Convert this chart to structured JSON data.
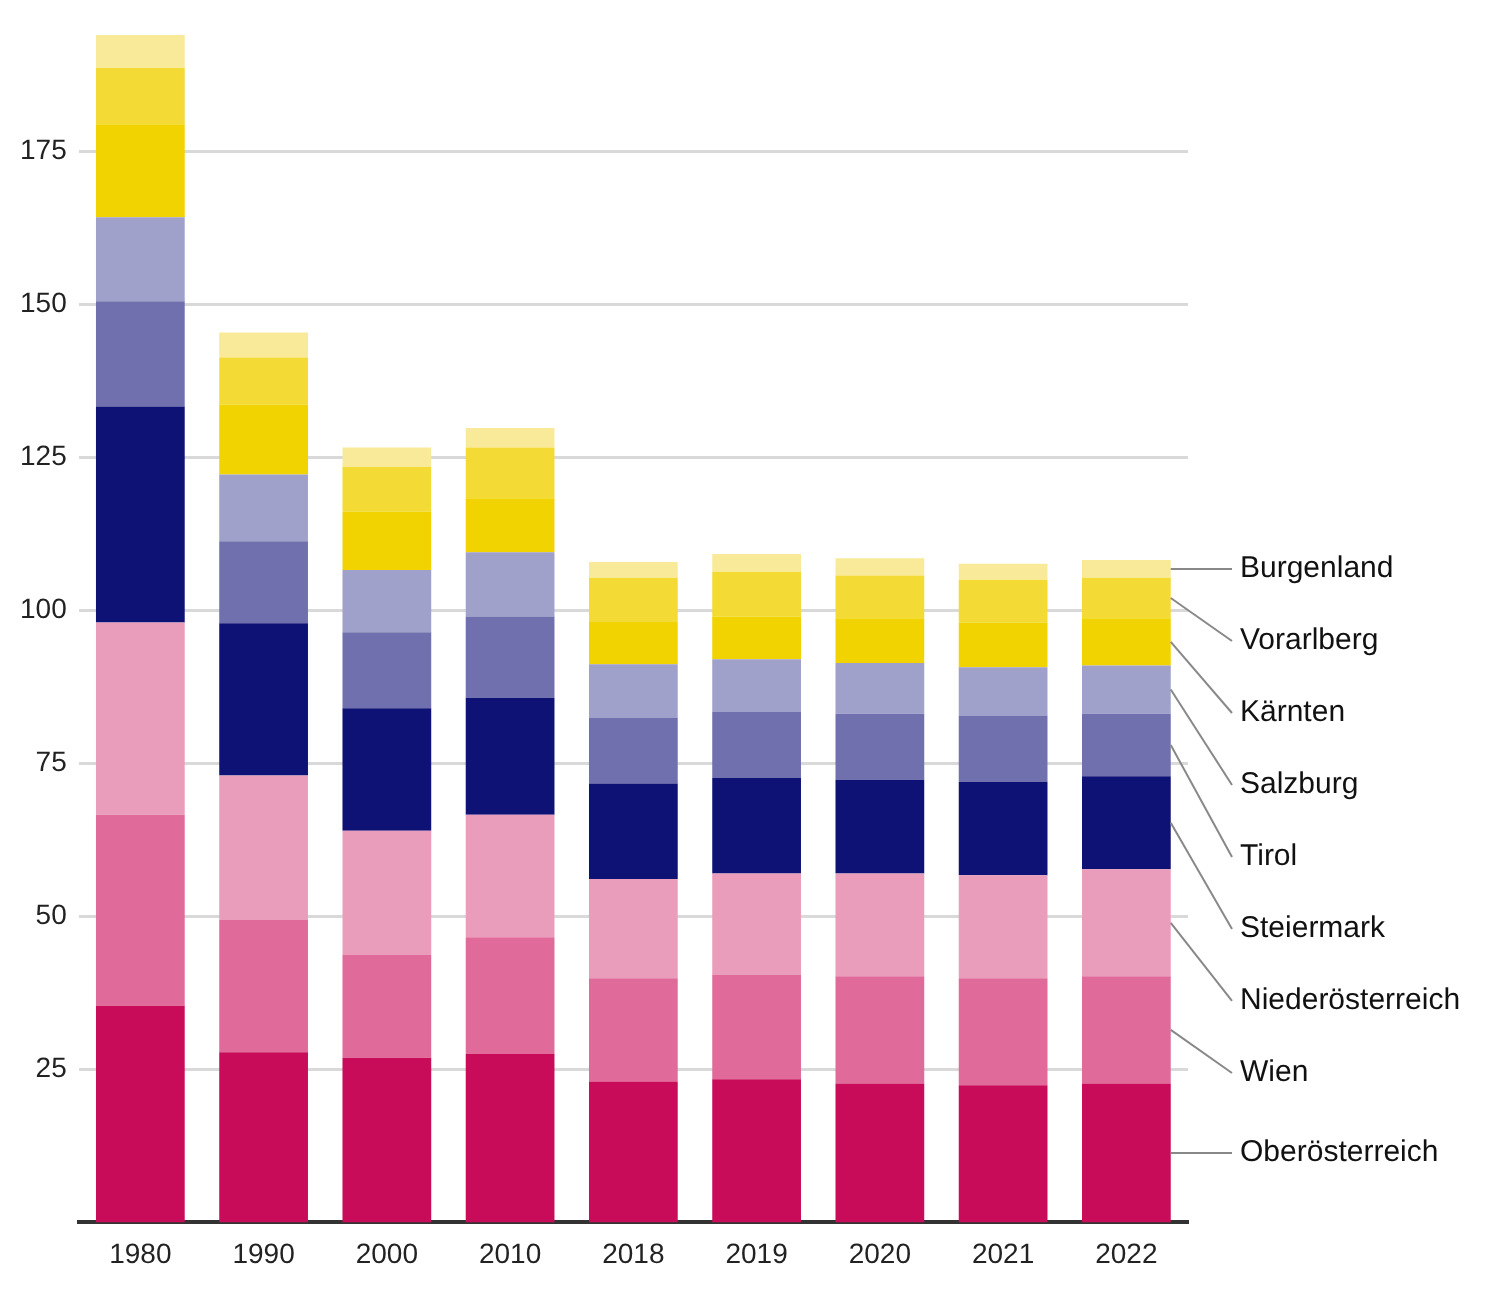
{
  "chart_data": {
    "type": "bar",
    "stacked": true,
    "categories": [
      "1980",
      "1990",
      "2000",
      "2010",
      "2018",
      "2019",
      "2020",
      "2021",
      "2022"
    ],
    "series": [
      {
        "name": "Oberösterreich",
        "color": "#c90c59",
        "values": [
          35.4,
          27.8,
          26.9,
          27.5,
          23.0,
          23.4,
          22.7,
          22.4,
          22.7
        ]
      },
      {
        "name": "Wien",
        "color": "#e06b9a",
        "values": [
          31.2,
          21.6,
          16.8,
          19.1,
          16.9,
          17.1,
          17.5,
          17.5,
          17.5
        ]
      },
      {
        "name": "Niederösterreich",
        "color": "#ea9dbb",
        "values": [
          31.4,
          23.6,
          20.3,
          20.0,
          16.2,
          16.5,
          16.8,
          16.8,
          17.5
        ]
      },
      {
        "name": "Steiermark",
        "color": "#0f1275",
        "values": [
          35.3,
          24.9,
          20.0,
          19.1,
          15.6,
          15.6,
          15.3,
          15.3,
          15.2
        ]
      },
      {
        "name": "Tirol",
        "color": "#7070ae",
        "values": [
          17.2,
          13.4,
          12.4,
          13.3,
          10.8,
          10.8,
          10.8,
          10.8,
          10.2
        ]
      },
      {
        "name": "Salzburg",
        "color": "#9fa1ca",
        "values": [
          13.7,
          10.9,
          10.2,
          10.5,
          8.7,
          8.6,
          8.3,
          7.9,
          7.9
        ]
      },
      {
        "name": "Kärnten",
        "color": "#f0d300",
        "values": [
          15.2,
          11.4,
          9.5,
          8.8,
          6.9,
          7.0,
          7.3,
          7.3,
          7.7
        ]
      },
      {
        "name": "Vorarlberg",
        "color": "#f3da35",
        "values": [
          9.2,
          7.7,
          7.3,
          8.3,
          7.2,
          7.3,
          7.0,
          7.0,
          6.6
        ]
      },
      {
        "name": "Burgenland",
        "color": "#f9ea9a",
        "values": [
          5.4,
          4.1,
          3.2,
          3.2,
          2.6,
          2.9,
          2.8,
          2.6,
          2.9
        ]
      }
    ],
    "ylim": [
      0,
      195
    ],
    "yticks": [
      25,
      50,
      75,
      100,
      125,
      150,
      175
    ],
    "grid": "y",
    "legend": false
  }
}
